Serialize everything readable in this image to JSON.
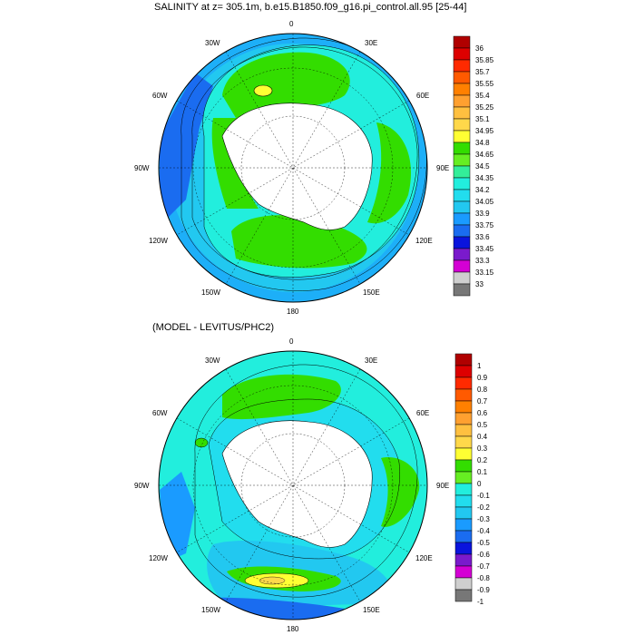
{
  "panel1": {
    "title": "SALINITY at z= 305.1m, b.e15.B1850.f09_g16.pi_control.all.95 [25-44]",
    "legend_labels": [
      "36",
      "35.85",
      "35.7",
      "35.55",
      "35.4",
      "35.25",
      "35.1",
      "34.95",
      "34.8",
      "34.65",
      "34.5",
      "34.35",
      "34.2",
      "34.05",
      "33.9",
      "33.75",
      "33.6",
      "33.45",
      "33.3",
      "33.15",
      "33"
    ],
    "legend_colors": [
      "#b00000",
      "#dd0000",
      "#ff2a00",
      "#ff5a00",
      "#ff8000",
      "#ffa030",
      "#ffc040",
      "#ffd84a",
      "#ffff33",
      "#33dd00",
      "#66ee22",
      "#33ee99",
      "#22eedd",
      "#22ddee",
      "#22c8f0",
      "#1a9bff",
      "#1a6cf0",
      "#0a14dd",
      "#7a1acc",
      "#d400d4",
      "#cfcfcf",
      "#777777"
    ]
  },
  "panel2": {
    "title": "(MODEL - LEVITUS/PHC2)",
    "legend_labels": [
      "1",
      "0.9",
      "0.8",
      "0.7",
      "0.6",
      "0.5",
      "0.4",
      "0.3",
      "0.2",
      "0.1",
      "0",
      "-0.1",
      "-0.2",
      "-0.3",
      "-0.4",
      "-0.5",
      "-0.6",
      "-0.7",
      "-0.8",
      "-0.9",
      "-1"
    ],
    "legend_colors": [
      "#b00000",
      "#dd0000",
      "#ff2a00",
      "#ff5a00",
      "#ff8000",
      "#ffa030",
      "#ffc040",
      "#ffd84a",
      "#ffff33",
      "#33dd00",
      "#66ee22",
      "#22eedd",
      "#22ddee",
      "#22c8f0",
      "#1a9bff",
      "#1a6cf0",
      "#0a14dd",
      "#7a1acc",
      "#d400d4",
      "#cfcfcf",
      "#777777"
    ]
  },
  "map_labels": {
    "lon_0": "0",
    "lon_30e": "30E",
    "lon_60e": "60E",
    "lon_90e": "90E",
    "lon_120e": "120E",
    "lon_150e": "150E",
    "lon_180": "180",
    "lon_150w": "150W",
    "lon_120w": "120W",
    "lon_90w": "90W",
    "lon_60w": "60W",
    "lon_30w": "30W"
  },
  "colors": {
    "ocean_blue": "#22c8f0",
    "deep_blue": "#1a6cf0",
    "green": "#33dd00",
    "light_green": "#66ee22",
    "cyan": "#22eedd",
    "land": "#ffffff"
  }
}
